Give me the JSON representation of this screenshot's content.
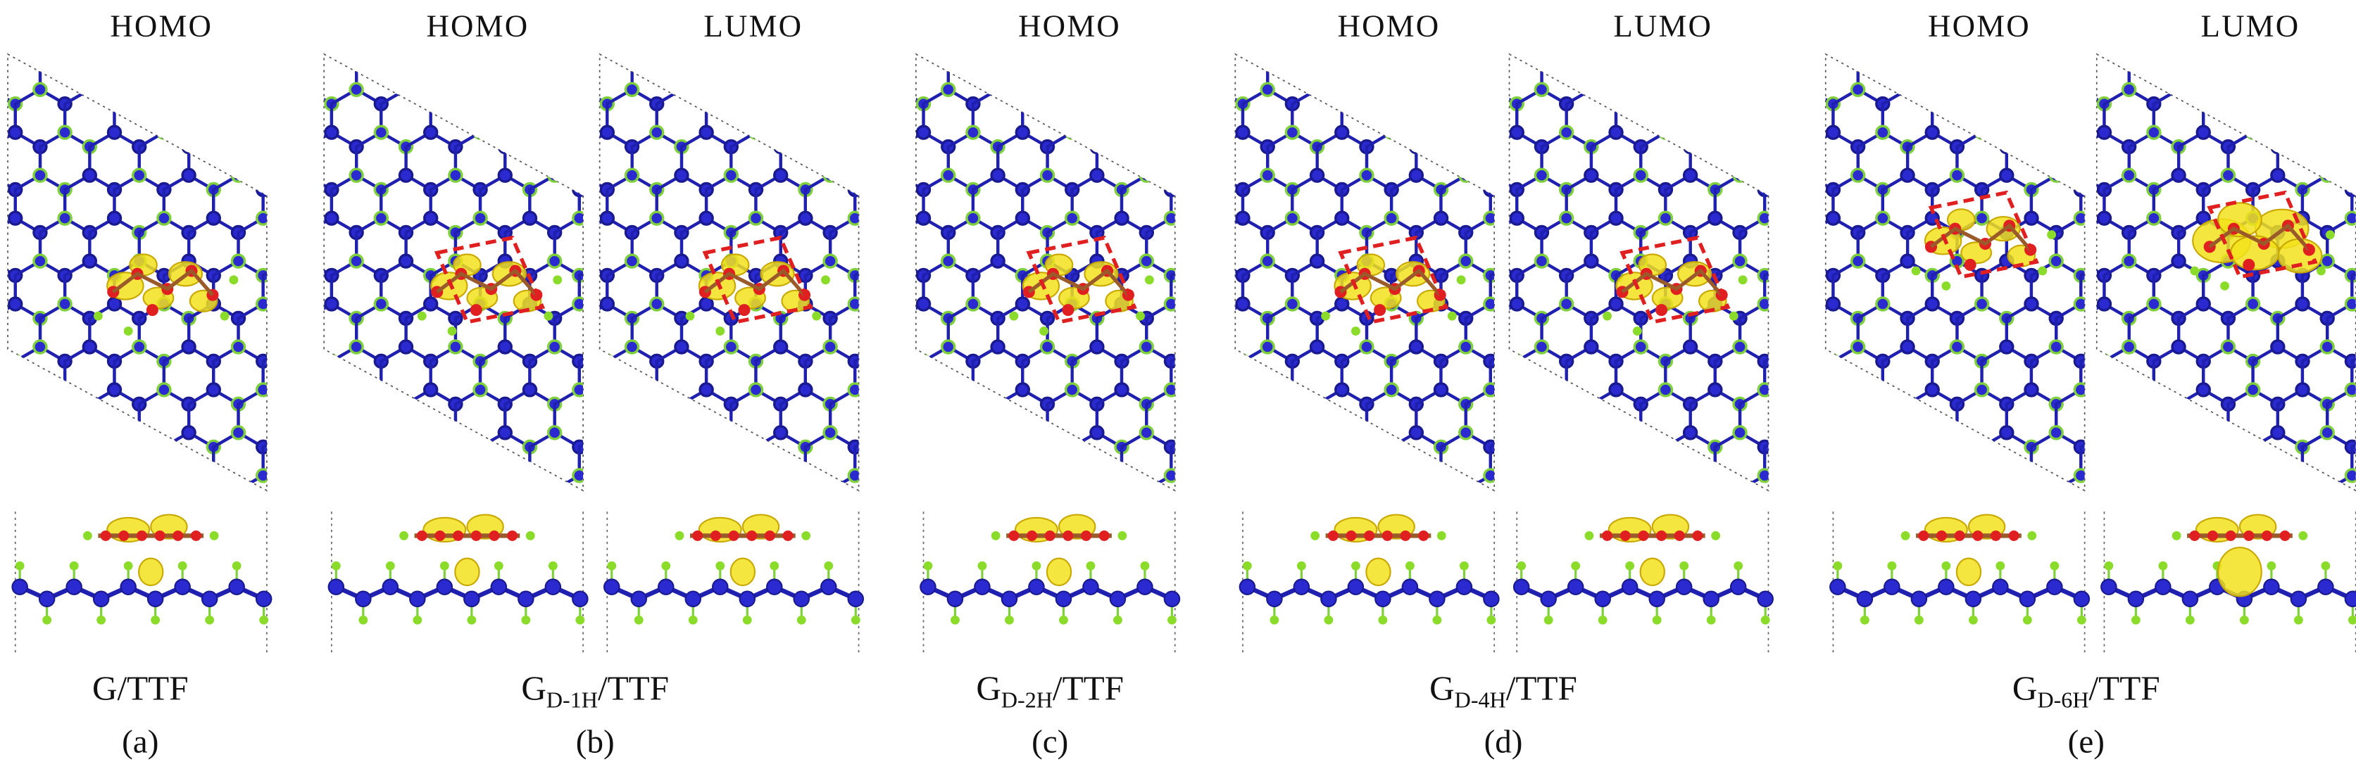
{
  "panels": [
    {
      "label": "(a)",
      "caption": {
        "base": "G/TTF"
      },
      "views": [
        "HOMO"
      ]
    },
    {
      "label": "(b)",
      "caption": {
        "base": "G",
        "sub": "D-1H",
        "rest": "/TTF"
      },
      "views": [
        "HOMO",
        "LUMO"
      ]
    },
    {
      "label": "(c)",
      "caption": {
        "base": "G",
        "sub": "D-2H",
        "rest": "/TTF"
      },
      "views": [
        "HOMO"
      ]
    },
    {
      "label": "(d)",
      "caption": {
        "base": "G",
        "sub": "D-4H",
        "rest": "/TTF"
      },
      "views": [
        "HOMO",
        "LUMO"
      ]
    },
    {
      "label": "(e)",
      "caption": {
        "base": "G",
        "sub": "D-6H",
        "rest": "/TTF"
      },
      "views": [
        "HOMO",
        "LUMO"
      ]
    }
  ]
}
